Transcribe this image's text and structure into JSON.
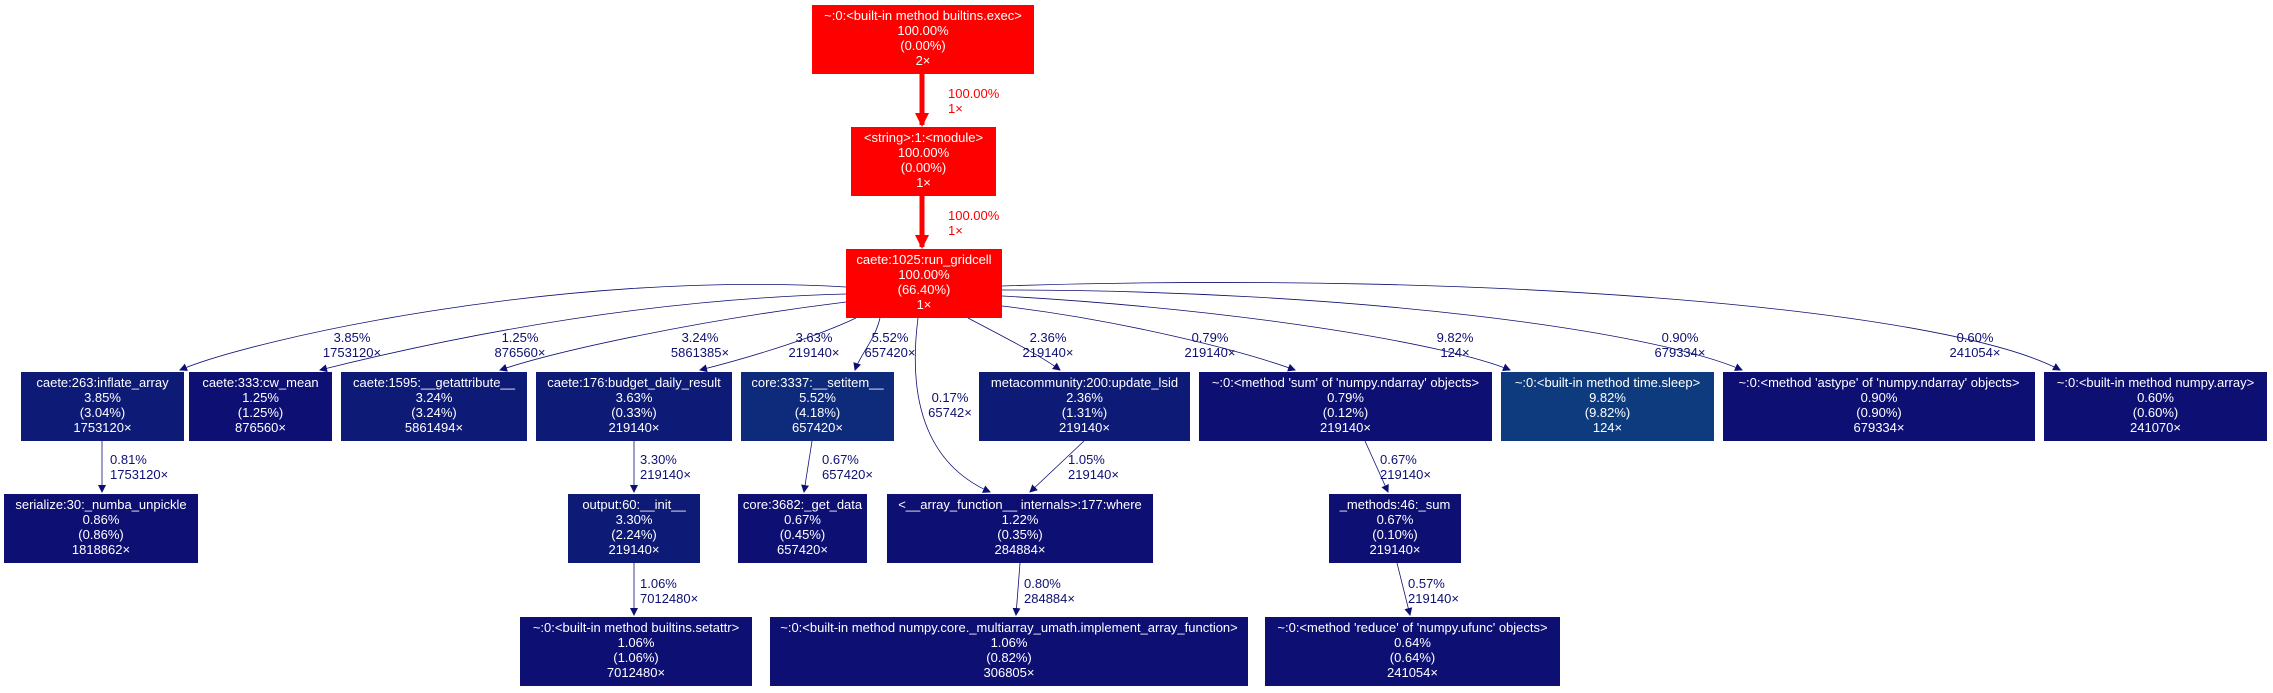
{
  "colors": {
    "hot": "#ff0000",
    "navy": "#0d0f73",
    "navy2": "#0d1a76",
    "navy3": "#0d2a7b",
    "sleep": "#0d3b7e",
    "edge_hot": "#ff0000",
    "edge_cold": "#0d0f73",
    "background": "#ffffff"
  },
  "nodes": [
    {
      "id": "exec",
      "lines": [
        "~:0:<built-in method builtins.exec>",
        "100.00%",
        "(0.00%)",
        "2×"
      ],
      "color": "hot"
    },
    {
      "id": "module",
      "lines": [
        "<string>:1:<module>",
        "100.00%",
        "(0.00%)",
        "1×"
      ],
      "color": "hot"
    },
    {
      "id": "run_gridcell",
      "lines": [
        "caete:1025:run_gridcell",
        "100.00%",
        "(66.40%)",
        "1×"
      ],
      "color": "hot"
    },
    {
      "id": "inflate_array",
      "lines": [
        "caete:263:inflate_array",
        "3.85%",
        "(3.04%)",
        "1753120×"
      ],
      "color": "navy2"
    },
    {
      "id": "cw_mean",
      "lines": [
        "caete:333:cw_mean",
        "1.25%",
        "(1.25%)",
        "876560×"
      ],
      "color": "navy"
    },
    {
      "id": "getattribute",
      "lines": [
        "caete:1595:__getattribute__",
        "3.24%",
        "(3.24%)",
        "5861494×"
      ],
      "color": "navy2"
    },
    {
      "id": "budget",
      "lines": [
        "caete:176:budget_daily_result",
        "3.63%",
        "(0.33%)",
        "219140×"
      ],
      "color": "navy2"
    },
    {
      "id": "setitem",
      "lines": [
        "core:3337:__setitem__",
        "5.52%",
        "(4.18%)",
        "657420×"
      ],
      "color": "navy3"
    },
    {
      "id": "update_lsid",
      "lines": [
        "metacommunity:200:update_lsid",
        "2.36%",
        "(1.31%)",
        "219140×"
      ],
      "color": "navy2"
    },
    {
      "id": "sum_method",
      "lines": [
        "~:0:<method 'sum' of 'numpy.ndarray' objects>",
        "0.79%",
        "(0.12%)",
        "219140×"
      ],
      "color": "navy"
    },
    {
      "id": "sleep",
      "lines": [
        "~:0:<built-in method time.sleep>",
        "9.82%",
        "(9.82%)",
        "124×"
      ],
      "color": "sleep"
    },
    {
      "id": "astype",
      "lines": [
        "~:0:<method 'astype' of 'numpy.ndarray' objects>",
        "0.90%",
        "(0.90%)",
        "679334×"
      ],
      "color": "navy"
    },
    {
      "id": "np_array",
      "lines": [
        "~:0:<built-in method numpy.array>",
        "0.60%",
        "(0.60%)",
        "241070×"
      ],
      "color": "navy"
    },
    {
      "id": "unpickle",
      "lines": [
        "serialize:30:_numba_unpickle",
        "0.86%",
        "(0.86%)",
        "1818862×"
      ],
      "color": "navy"
    },
    {
      "id": "output_init",
      "lines": [
        "output:60:__init__",
        "3.30%",
        "(2.24%)",
        "219140×"
      ],
      "color": "navy2"
    },
    {
      "id": "get_data",
      "lines": [
        "core:3682:_get_data",
        "0.67%",
        "(0.45%)",
        "657420×"
      ],
      "color": "navy"
    },
    {
      "id": "where",
      "lines": [
        "<__array_function__ internals>:177:where",
        "1.22%",
        "(0.35%)",
        "284884×"
      ],
      "color": "navy"
    },
    {
      "id": "methods_sum",
      "lines": [
        "_methods:46:_sum",
        "0.67%",
        "(0.10%)",
        "219140×"
      ],
      "color": "navy"
    },
    {
      "id": "setattr",
      "lines": [
        "~:0:<built-in method builtins.setattr>",
        "1.06%",
        "(1.06%)",
        "7012480×"
      ],
      "color": "navy"
    },
    {
      "id": "impl_array_fn",
      "lines": [
        "~:0:<built-in method numpy.core._multiarray_umath.implement_array_function>",
        "1.06%",
        "(0.82%)",
        "306805×"
      ],
      "color": "navy"
    },
    {
      "id": "reduce",
      "lines": [
        "~:0:<method 'reduce' of 'numpy.ufunc' objects>",
        "0.64%",
        "(0.64%)",
        "241054×"
      ],
      "color": "navy"
    }
  ],
  "edges": [
    {
      "from": "exec",
      "to": "module",
      "pct": "100.00%",
      "calls": "1×",
      "hot": true
    },
    {
      "from": "module",
      "to": "run_gridcell",
      "pct": "100.00%",
      "calls": "1×",
      "hot": true
    },
    {
      "from": "run_gridcell",
      "to": "inflate_array",
      "pct": "3.85%",
      "calls": "1753120×"
    },
    {
      "from": "run_gridcell",
      "to": "cw_mean",
      "pct": "1.25%",
      "calls": "876560×"
    },
    {
      "from": "run_gridcell",
      "to": "getattribute",
      "pct": "3.24%",
      "calls": "5861385×"
    },
    {
      "from": "run_gridcell",
      "to": "budget",
      "pct": "3.63%",
      "calls": "219140×"
    },
    {
      "from": "run_gridcell",
      "to": "setitem",
      "pct": "5.52%",
      "calls": "657420×"
    },
    {
      "from": "run_gridcell",
      "to": "where",
      "pct": "0.17%",
      "calls": "65742×"
    },
    {
      "from": "run_gridcell",
      "to": "update_lsid",
      "pct": "2.36%",
      "calls": "219140×"
    },
    {
      "from": "run_gridcell",
      "to": "sum_method",
      "pct": "0.79%",
      "calls": "219140×"
    },
    {
      "from": "run_gridcell",
      "to": "sleep",
      "pct": "9.82%",
      "calls": "124×"
    },
    {
      "from": "run_gridcell",
      "to": "astype",
      "pct": "0.90%",
      "calls": "679334×"
    },
    {
      "from": "run_gridcell",
      "to": "np_array",
      "pct": "0.60%",
      "calls": "241054×"
    },
    {
      "from": "inflate_array",
      "to": "unpickle",
      "pct": "0.81%",
      "calls": "1753120×"
    },
    {
      "from": "budget",
      "to": "output_init",
      "pct": "3.30%",
      "calls": "219140×"
    },
    {
      "from": "setitem",
      "to": "get_data",
      "pct": "0.67%",
      "calls": "657420×"
    },
    {
      "from": "update_lsid",
      "to": "where",
      "pct": "1.05%",
      "calls": "219140×"
    },
    {
      "from": "sum_method",
      "to": "methods_sum",
      "pct": "0.67%",
      "calls": "219140×"
    },
    {
      "from": "output_init",
      "to": "setattr",
      "pct": "1.06%",
      "calls": "7012480×"
    },
    {
      "from": "where",
      "to": "impl_array_fn",
      "pct": "0.80%",
      "calls": "284884×"
    },
    {
      "from": "methods_sum",
      "to": "reduce",
      "pct": "0.57%",
      "calls": "219140×"
    }
  ]
}
